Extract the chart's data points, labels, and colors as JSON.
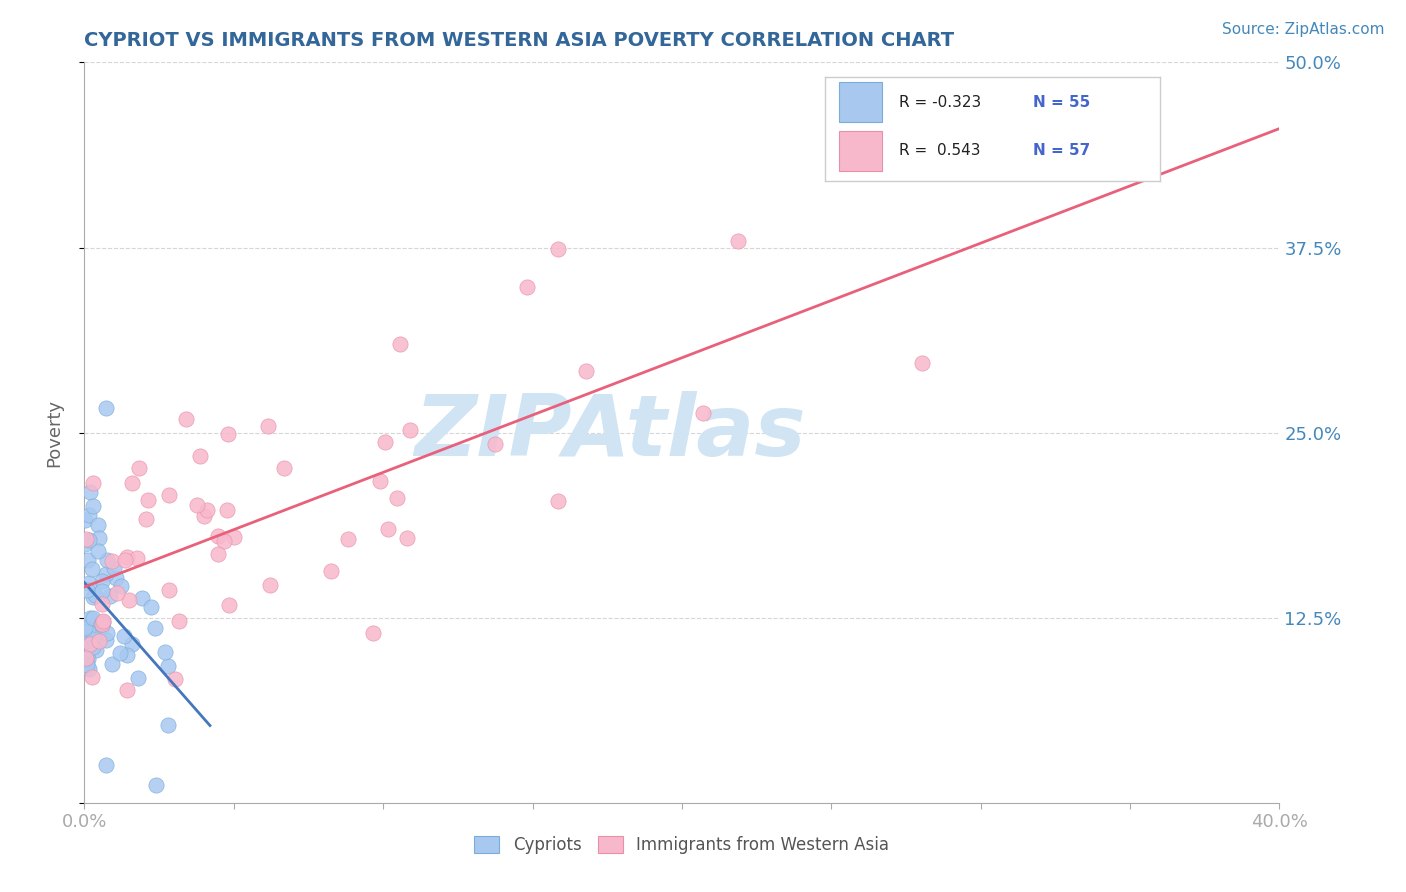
{
  "title": "CYPRIOT VS IMMIGRANTS FROM WESTERN ASIA POVERTY CORRELATION CHART",
  "source": "Source: ZipAtlas.com",
  "ylabel": "Poverty",
  "xlim": [
    0.0,
    0.4
  ],
  "ylim": [
    0.0,
    0.5
  ],
  "blue_R": -0.323,
  "blue_N": 55,
  "pink_R": 0.543,
  "pink_N": 57,
  "blue_color": "#a8c8f0",
  "blue_edge_color": "#7aaed8",
  "pink_color": "#f8b8cc",
  "pink_edge_color": "#e890a8",
  "blue_line_color": "#4477bb",
  "pink_line_color": "#e8607a",
  "blue_label": "Cypriots",
  "pink_label": "Immigrants from Western Asia",
  "legend_R_color": "#4466cc",
  "legend_N_color": "#4466cc",
  "watermark_text": "ZIPAtlas",
  "watermark_color": "#d0e4f4",
  "background_color": "#ffffff",
  "grid_color": "#cccccc",
  "title_color": "#336699",
  "tick_label_color": "#4488bb",
  "source_color": "#4488bb"
}
